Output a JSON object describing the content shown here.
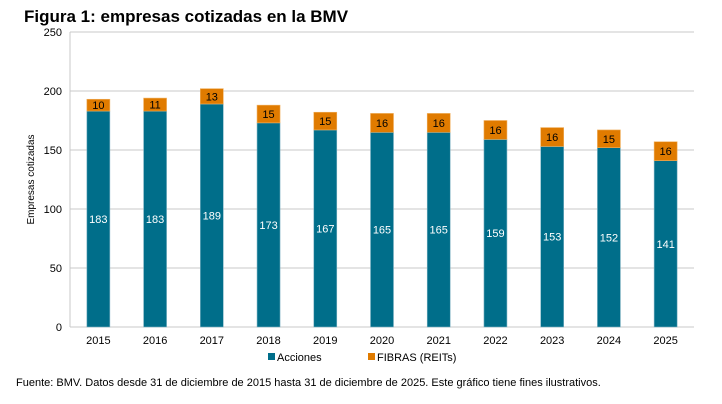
{
  "chart_data": {
    "type": "bar",
    "stacked": true,
    "title": "Figura 1: empresas cotizadas en la BMV",
    "ylabel": "Empresas cotizadas",
    "xlabel": "",
    "ylim": [
      0,
      250
    ],
    "yticks": [
      0,
      50,
      100,
      150,
      200,
      250
    ],
    "grid": true,
    "legend": "bottom",
    "categories": [
      "2015",
      "2016",
      "2017",
      "2018",
      "2019",
      "2020",
      "2021",
      "2022",
      "2023",
      "2024",
      "2025"
    ],
    "series": [
      {
        "name": "Acciones",
        "color": "#006E8A",
        "values": [
          183,
          183,
          189,
          173,
          167,
          165,
          165,
          159,
          153,
          152,
          141
        ]
      },
      {
        "name": "FIBRAS (REITs)",
        "color": "#E07B00",
        "values": [
          10,
          11,
          13,
          15,
          15,
          16,
          16,
          16,
          16,
          15,
          16
        ]
      }
    ]
  },
  "footer": "Fuente: BMV. Datos desde 31 de diciembre de 2015 hasta 31 de diciembre de 2025. Este gráfico tiene fines ilustrativos."
}
